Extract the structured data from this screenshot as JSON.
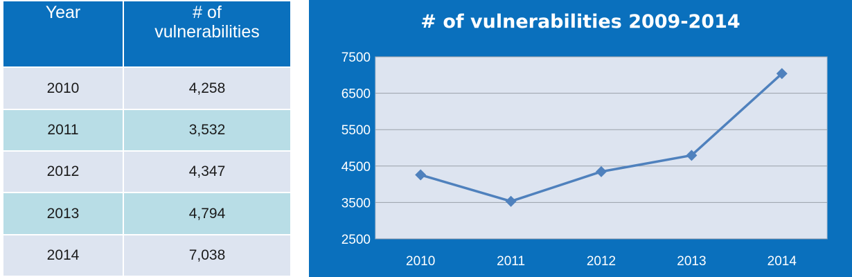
{
  "table": {
    "header": {
      "year": "Year",
      "vuln_line1": "# of",
      "vuln_line2": "vulnerabilities"
    },
    "rows": [
      {
        "year": "2010",
        "value": "4,258"
      },
      {
        "year": "2011",
        "value": "3,532"
      },
      {
        "year": "2012",
        "value": "4,347"
      },
      {
        "year": "2013",
        "value": "4,794"
      },
      {
        "year": "2014",
        "value": "7,038"
      }
    ]
  },
  "chart_data": {
    "type": "line",
    "title": "# of vulnerabilities 2009-2014",
    "categories": [
      "2010",
      "2011",
      "2012",
      "2013",
      "2014"
    ],
    "series": [
      {
        "values": [
          4258,
          3532,
          4347,
          4794,
          7038
        ]
      }
    ],
    "ylim": [
      2500,
      7500
    ],
    "yticks": [
      2500,
      3500,
      4500,
      5500,
      6500,
      7500
    ],
    "grid": true,
    "marker": "diamond",
    "colors": {
      "panel": "#0a70bd",
      "plot_bg": "#dde4f0",
      "line": "#4f81bd",
      "text": "#ffffff",
      "grid": "#9aa0a8"
    }
  }
}
